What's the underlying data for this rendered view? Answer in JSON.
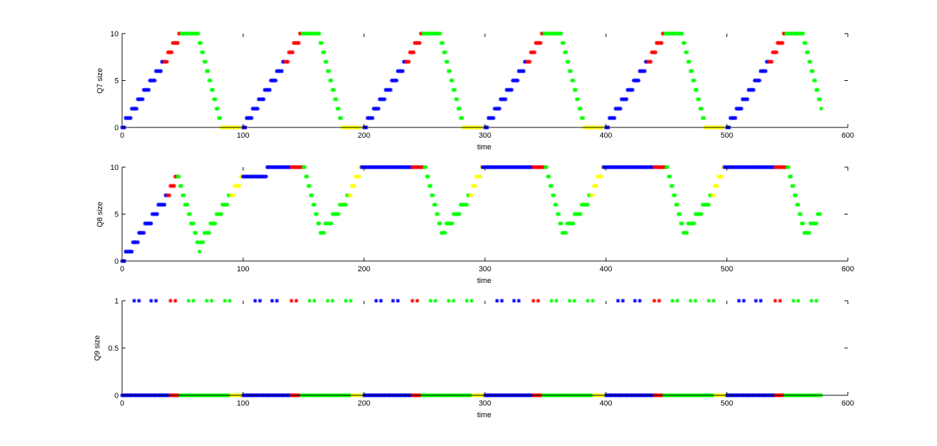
{
  "colors": {
    "blue": "#0000ff",
    "red": "#ff0000",
    "green": "#00ff00",
    "yellow": "#ffff00"
  },
  "chart_data": [
    {
      "type": "scatter",
      "marker": "*",
      "xlabel": "time",
      "ylabel": "Q7 size",
      "xlim": [
        0,
        600
      ],
      "ylim": [
        0,
        10
      ],
      "xticks": [
        0,
        100,
        200,
        300,
        400,
        500,
        600
      ],
      "yticks": [
        0,
        5,
        10
      ],
      "cycle_period": 100,
      "cycle_count": 6,
      "last_time": 578,
      "cycle_segments": [
        {
          "color": "blue",
          "t_start": 0,
          "t_end": 35,
          "y_start": 0,
          "y_end": 7
        },
        {
          "color": "red",
          "t_start": 35,
          "t_end": 49,
          "y_start": 7,
          "y_end": 10
        },
        {
          "color": "green",
          "t_start": 49,
          "t_end": 62,
          "y_start": 10,
          "y_end": 10
        },
        {
          "color": "green",
          "t_start": 62,
          "t_end": 82,
          "y_start": 10,
          "y_end": 0
        },
        {
          "color": "yellow",
          "t_start": 82,
          "t_end": 98,
          "y_start": 0,
          "y_end": 0
        }
      ]
    },
    {
      "type": "scatter",
      "marker": "*",
      "xlabel": "time",
      "ylabel": "Q8 size",
      "xlim": [
        0,
        600
      ],
      "ylim": [
        0,
        10
      ],
      "xticks": [
        0,
        100,
        200,
        300,
        400,
        500,
        600
      ],
      "yticks": [
        0,
        5,
        10
      ],
      "last_time": 578,
      "segments": [
        {
          "color": "blue",
          "t_start": 0,
          "t_end": 38,
          "y_start": 0,
          "y_end": 7
        },
        {
          "color": "red",
          "t_start": 38,
          "t_end": 46,
          "y_start": 7,
          "y_end": 9
        },
        {
          "color": "green",
          "t_start": 46,
          "t_end": 65,
          "y_start": 9,
          "y_end": 1
        },
        {
          "color": "green",
          "t_start": 65,
          "t_end": 90,
          "y_start": 2,
          "y_end": 7
        },
        {
          "color": "yellow",
          "t_start": 90,
          "t_end": 100,
          "y_start": 7,
          "y_end": 9
        },
        {
          "color": "blue",
          "t_start": 100,
          "t_end": 140,
          "y_start": 9,
          "y_end": 10
        },
        {
          "color": "red",
          "t_start": 140,
          "t_end": 150,
          "y_start": 10,
          "y_end": 10
        },
        {
          "color": "green",
          "t_start": 150,
          "t_end": 165,
          "y_start": 10,
          "y_end": 3
        },
        {
          "color": "green",
          "t_start": 165,
          "t_end": 188,
          "y_start": 3,
          "y_end": 7
        },
        {
          "color": "yellow",
          "t_start": 188,
          "t_end": 198,
          "y_start": 7,
          "y_end": 10
        },
        {
          "color": "blue",
          "t_start": 198,
          "t_end": 240,
          "y_start": 10,
          "y_end": 10
        },
        {
          "color": "red",
          "t_start": 240,
          "t_end": 250,
          "y_start": 10,
          "y_end": 10
        },
        {
          "color": "green",
          "t_start": 250,
          "t_end": 265,
          "y_start": 10,
          "y_end": 3
        },
        {
          "color": "green",
          "t_start": 265,
          "t_end": 288,
          "y_start": 3,
          "y_end": 7
        },
        {
          "color": "yellow",
          "t_start": 288,
          "t_end": 298,
          "y_start": 7,
          "y_end": 10
        },
        {
          "color": "blue",
          "t_start": 298,
          "t_end": 340,
          "y_start": 10,
          "y_end": 10
        },
        {
          "color": "red",
          "t_start": 340,
          "t_end": 350,
          "y_start": 10,
          "y_end": 10
        },
        {
          "color": "green",
          "t_start": 350,
          "t_end": 365,
          "y_start": 10,
          "y_end": 3
        },
        {
          "color": "green",
          "t_start": 365,
          "t_end": 388,
          "y_start": 3,
          "y_end": 7
        },
        {
          "color": "yellow",
          "t_start": 388,
          "t_end": 398,
          "y_start": 7,
          "y_end": 10
        },
        {
          "color": "blue",
          "t_start": 398,
          "t_end": 440,
          "y_start": 10,
          "y_end": 10
        },
        {
          "color": "red",
          "t_start": 440,
          "t_end": 450,
          "y_start": 10,
          "y_end": 10
        },
        {
          "color": "green",
          "t_start": 450,
          "t_end": 465,
          "y_start": 10,
          "y_end": 3
        },
        {
          "color": "green",
          "t_start": 465,
          "t_end": 488,
          "y_start": 3,
          "y_end": 7
        },
        {
          "color": "yellow",
          "t_start": 488,
          "t_end": 498,
          "y_start": 7,
          "y_end": 10
        },
        {
          "color": "blue",
          "t_start": 498,
          "t_end": 540,
          "y_start": 10,
          "y_end": 10
        },
        {
          "color": "red",
          "t_start": 540,
          "t_end": 550,
          "y_start": 10,
          "y_end": 10
        },
        {
          "color": "green",
          "t_start": 550,
          "t_end": 565,
          "y_start": 10,
          "y_end": 3
        },
        {
          "color": "green",
          "t_start": 565,
          "t_end": 578,
          "y_start": 3,
          "y_end": 5
        }
      ]
    },
    {
      "type": "scatter",
      "marker": "*",
      "xlabel": "time",
      "ylabel": "Q9 size",
      "xlim": [
        0,
        600
      ],
      "ylim": [
        0,
        1
      ],
      "xticks": [
        0,
        100,
        200,
        300,
        400,
        500,
        600
      ],
      "yticks": [
        0,
        0.5,
        1
      ],
      "cycle_period": 100,
      "last_time": 578,
      "cycle_segments": [
        {
          "color": "blue",
          "t_start": 0,
          "t_end": 40
        },
        {
          "color": "red",
          "t_start": 40,
          "t_end": 48
        },
        {
          "color": "green",
          "t_start": 48,
          "t_end": 90
        },
        {
          "color": "yellow",
          "t_start": 90,
          "t_end": 100
        }
      ],
      "cycle_pulses": [
        {
          "t": 12,
          "color": "blue"
        },
        {
          "t": 26,
          "color": "blue"
        },
        {
          "t": 42,
          "color": "red"
        },
        {
          "t": 57,
          "color": "green"
        },
        {
          "t": 72,
          "color": "green"
        },
        {
          "t": 87,
          "color": "green"
        }
      ]
    }
  ]
}
